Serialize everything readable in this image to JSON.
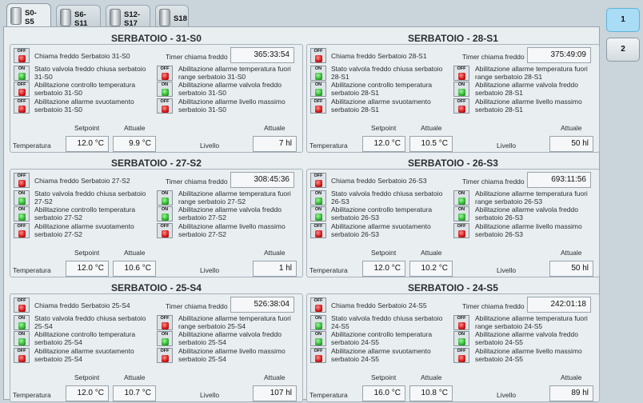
{
  "tabs": [
    {
      "label": "S0-\nS5",
      "active": true
    },
    {
      "label": "S6-\nS11",
      "active": false
    },
    {
      "label": "S12-\nS17",
      "active": false
    },
    {
      "label": "S18",
      "active": false
    }
  ],
  "side": [
    {
      "label": "1",
      "active": true
    },
    {
      "label": "2",
      "active": false
    }
  ],
  "labels": {
    "timer": "Timer chiama freddo",
    "setpoint": "Setpoint",
    "attuale": "Attuale",
    "temperatura": "Temperatura",
    "livello": "Livello",
    "off": "OFF",
    "on": "ON"
  },
  "tanks": [
    {
      "title": "SERBATOIO - 31-S0",
      "call": "Chiama freddo Serbatoio 31-S0",
      "valve": "Stato valvola freddo chiusa serbatoio 31-S0",
      "ctrl": "Abilitazione controllo temperatura serbatoio 31-S0",
      "empty": "Abilitazione allarme svuotamento serbatoio 31-S0",
      "range": "Abilitazione allarme temperatura fuori range serbatoio 31-S0",
      "valvealarm": "Abilitazione allarme valvola freddo serbatoio 31-S0",
      "level": "Abilitazione allarme livello massimo serbatoio 31-S0",
      "timer": "365:33:54",
      "setpoint": "12.0 °C",
      "actual": "9.9 °C",
      "levelval": "7 hl",
      "sw": [
        "off",
        "on",
        "off",
        "off",
        "off",
        "on",
        "off"
      ]
    },
    {
      "title": "SERBATOIO - 28-S1",
      "call": "Chiama freddo Serbatoio 28-S1",
      "valve": "Stato valvola freddo chiusa serbatoio 28-S1",
      "ctrl": "Abilitazione controllo temperatura serbatoio 28-S1",
      "empty": "Abilitazione allarme svuotamento serbatoio 28-S1",
      "range": "Abilitazione allarme temperatura fuori range serbatoio 28-S1",
      "valvealarm": "Abilitazione allarme valvola freddo serbatoio 28-S1",
      "level": "Abilitazione allarme livello massimo serbatoio 28-S1",
      "timer": "375:49:09",
      "setpoint": "12.0 °C",
      "actual": "10.5 °C",
      "levelval": "50 hl",
      "sw": [
        "off",
        "on",
        "on",
        "off",
        "off",
        "on",
        "off"
      ]
    },
    {
      "title": "SERBATOIO - 27-S2",
      "call": "Chiama freddo Serbatoio 27-S2",
      "valve": "Stato valvola freddo chiusa serbatoio 27-S2",
      "ctrl": "Abilitazione controllo temperatura serbatoio 27-S2",
      "empty": "Abilitazione allarme svuotamento serbatoio 27-S2",
      "range": "Abilitazione allarme temperatura fuori range serbatoio 27-S2",
      "valvealarm": "Abilitazione allarme valvola freddo serbatoio 27-S2",
      "level": "Abilitazione allarme livello massimo serbatoio 27-S2",
      "timer": "308:45:36",
      "setpoint": "12.0 °C",
      "actual": "10.6 °C",
      "levelval": "1 hl",
      "sw": [
        "off",
        "on",
        "on",
        "off",
        "on",
        "on",
        "off"
      ]
    },
    {
      "title": "SERBATOIO - 26-S3",
      "call": "Chiama freddo Serbatoio 26-S3",
      "valve": "Stato valvola freddo chiusa serbatoio 26-S3",
      "ctrl": "Abilitazione controllo temperatura serbatoio 26-S3",
      "empty": "Abilitazione allarme svuotamento serbatoio 26-S3",
      "range": "Abilitazione allarme temperatura fuori range serbatoio 26-S3",
      "valvealarm": "Abilitazione allarme valvola freddo serbatoio 26-S3",
      "level": "Abilitazione allarme livello massimo serbatoio 26-S3",
      "timer": "693:11:56",
      "setpoint": "12.0 °C",
      "actual": "10.2 °C",
      "levelval": "50 hl",
      "sw": [
        "off",
        "on",
        "on",
        "off",
        "on",
        "on",
        "off"
      ]
    },
    {
      "title": "SERBATOIO - 25-S4",
      "call": "Chiama freddo Serbatoio 25-S4",
      "valve": "Stato valvola freddo chiusa serbatoio 25-S4",
      "ctrl": "Abilitazione controllo temperatura serbatoio 25-S4",
      "empty": "Abilitazione allarme svuotamento serbatoio 25-S4",
      "range": "Abilitazione allarme temperatura fuori range serbatoio 25-S4",
      "valvealarm": "Abilitazione allarme valvola freddo serbatoio 25-S4",
      "level": "Abilitazione allarme livello massimo serbatoio 25-S4",
      "timer": "526:38:04",
      "setpoint": "12.0 °C",
      "actual": "10.7 °C",
      "levelval": "107 hl",
      "sw": [
        "off",
        "on",
        "on",
        "off",
        "off",
        "on",
        "off"
      ]
    },
    {
      "title": "SERBATOIO - 24-S5",
      "call": "Chiama freddo Serbatoio 24-S5",
      "valve": "Stato valvola freddo chiusa serbatoio 24-S5",
      "ctrl": "Abilitazione controllo temperatura serbatoio 24-S5",
      "empty": "Abilitazione allarme svuotamento serbatoio 24-S5",
      "range": "Abilitazione allarme temperatura fuori range serbatoio 24-S5",
      "valvealarm": "Abilitazione allarme valvola freddo serbatoio 24-S5",
      "level": "Abilitazione allarme livello massimo serbatoio 24-S5",
      "timer": "242:01:18",
      "setpoint": "16.0 °C",
      "actual": "10.8 °C",
      "levelval": "89 hl",
      "sw": [
        "off",
        "on",
        "on",
        "off",
        "off",
        "on",
        "off"
      ]
    }
  ]
}
